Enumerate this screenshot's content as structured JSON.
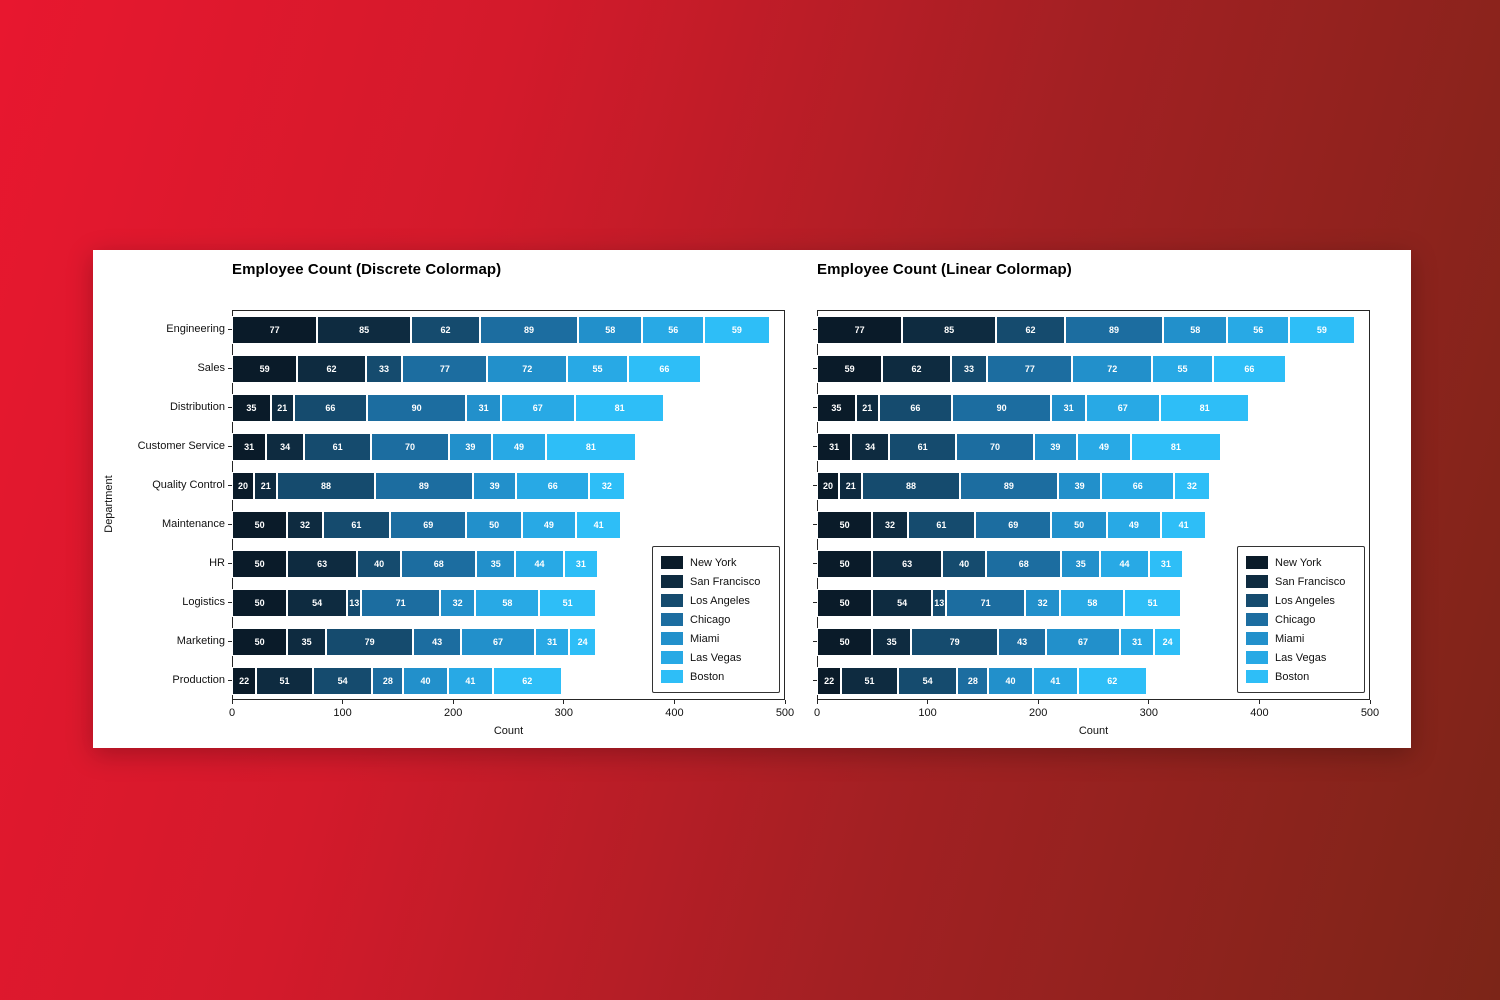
{
  "figure": {
    "background_gradient": [
      "#e8172f",
      "#d31a2b",
      "#7c2518"
    ],
    "panel_color": "#ffffff"
  },
  "chart_data": {
    "type": "stacked_bar_horizontal",
    "xlabel": "Count",
    "ylabel": "Department",
    "xlim": [
      0,
      500
    ],
    "xticks": [
      0,
      100,
      200,
      300,
      400,
      500
    ],
    "categories": [
      "Engineering",
      "Sales",
      "Distribution",
      "Customer Service",
      "Quality Control",
      "Maintenance",
      "HR",
      "Logistics",
      "Marketing",
      "Production"
    ],
    "series": [
      {
        "name": "New York",
        "values": [
          77,
          59,
          35,
          31,
          20,
          50,
          50,
          50,
          50,
          22
        ]
      },
      {
        "name": "San Francisco",
        "values": [
          85,
          62,
          21,
          34,
          21,
          32,
          63,
          54,
          35,
          51
        ]
      },
      {
        "name": "Los Angeles",
        "values": [
          62,
          33,
          66,
          61,
          88,
          61,
          40,
          13,
          79,
          54
        ]
      },
      {
        "name": "Chicago",
        "values": [
          89,
          77,
          90,
          70,
          89,
          69,
          68,
          71,
          43,
          28
        ]
      },
      {
        "name": "Miami",
        "values": [
          58,
          72,
          31,
          39,
          39,
          50,
          35,
          32,
          67,
          40
        ]
      },
      {
        "name": "Las Vegas",
        "values": [
          56,
          55,
          67,
          49,
          66,
          49,
          44,
          58,
          31,
          41
        ]
      },
      {
        "name": "Boston",
        "values": [
          59,
          66,
          81,
          81,
          32,
          41,
          31,
          51,
          24,
          62
        ]
      }
    ],
    "charts": [
      {
        "title": "Employee Count (Discrete Colormap)",
        "palette": [
          "#0a1b29",
          "#0e2b40",
          "#154b6e",
          "#1c6da0",
          "#2290cb",
          "#28a9e5",
          "#2ebef7"
        ]
      },
      {
        "title": "Employee Count (Linear Colormap)",
        "palette": [
          "#0a1b29",
          "#0e2b40",
          "#154b6e",
          "#1c6da0",
          "#2290cb",
          "#28a9e5",
          "#2ebef7"
        ]
      }
    ],
    "legend": {
      "position": "lower right",
      "labels": [
        "New York",
        "San Francisco",
        "Los Angeles",
        "Chicago",
        "Miami",
        "Las Vegas",
        "Boston"
      ]
    }
  }
}
